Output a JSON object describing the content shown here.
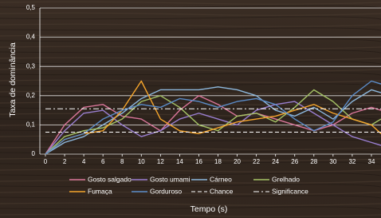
{
  "chart_data": {
    "type": "line",
    "x_label": "Tempo (s)",
    "y_label": "Taxa de dominância",
    "x": [
      0,
      2,
      4,
      6,
      8,
      10,
      12,
      14,
      16,
      18,
      20,
      22,
      24,
      26,
      28,
      30,
      32,
      34,
      35
    ],
    "xlim": [
      0,
      35
    ],
    "xticks": [
      0,
      2,
      4,
      6,
      8,
      10,
      12,
      14,
      16,
      18,
      20,
      22,
      24,
      26,
      28,
      30,
      32,
      34
    ],
    "ylim": [
      0,
      0.5
    ],
    "yticks": [
      0,
      {
        "value": 0.1,
        "label": "0,1"
      },
      {
        "value": 0.2,
        "label": "0,2"
      },
      {
        "value": 0.3,
        "label": "0,3"
      },
      {
        "value": 0.4,
        "label": "0,4"
      },
      {
        "value": 0.5,
        "label": "0,5"
      }
    ],
    "grid": true,
    "legend": "bottom",
    "series": [
      {
        "name": "Gosto salgado",
        "color": "#d9769a",
        "dash": "solid",
        "values": [
          0,
          0.1,
          0.16,
          0.17,
          0.13,
          0.12,
          0.08,
          0.15,
          0.2,
          0.17,
          0.13,
          0.14,
          0.12,
          0.1,
          0.08,
          0.1,
          0.14,
          0.16,
          0.15
        ]
      },
      {
        "name": "Gosto umami",
        "color": "#9a7fd1",
        "dash": "solid",
        "values": [
          0,
          0.08,
          0.14,
          0.15,
          0.1,
          0.06,
          0.08,
          0.12,
          0.14,
          0.12,
          0.1,
          0.15,
          0.17,
          0.18,
          0.14,
          0.1,
          0.06,
          0.04,
          0.03
        ]
      },
      {
        "name": "Cárneo",
        "color": "#8db8dd",
        "dash": "solid",
        "values": [
          0,
          0.04,
          0.06,
          0.1,
          0.14,
          0.19,
          0.22,
          0.22,
          0.22,
          0.23,
          0.22,
          0.2,
          0.15,
          0.13,
          0.16,
          0.12,
          0.18,
          0.22,
          0.21
        ]
      },
      {
        "name": "Grelhado",
        "color": "#a6c466",
        "dash": "solid",
        "values": [
          0,
          0.06,
          0.08,
          0.09,
          0.12,
          0.18,
          0.2,
          0.16,
          0.1,
          0.08,
          0.13,
          0.14,
          0.11,
          0.16,
          0.22,
          0.18,
          0.12,
          0.1,
          0.12
        ]
      },
      {
        "name": "Fumaça",
        "color": "#f5a52c",
        "dash": "solid",
        "values": [
          0,
          0.05,
          0.07,
          0.08,
          0.15,
          0.25,
          0.12,
          0.08,
          0.07,
          0.09,
          0.11,
          0.12,
          0.13,
          0.15,
          0.17,
          0.14,
          0.12,
          0.1,
          0.07
        ]
      },
      {
        "name": "Gorduroso",
        "color": "#5b8cc8",
        "dash": "solid",
        "values": [
          0,
          0.05,
          0.07,
          0.12,
          0.15,
          0.17,
          0.16,
          0.19,
          0.18,
          0.16,
          0.18,
          0.19,
          0.17,
          0.12,
          0.08,
          0.11,
          0.2,
          0.25,
          0.24
        ]
      },
      {
        "name": "Chance",
        "color": "#ffffff",
        "dash": "dashed",
        "values": [
          0.075,
          0.075,
          0.075,
          0.075,
          0.075,
          0.075,
          0.075,
          0.075,
          0.075,
          0.075,
          0.075,
          0.075,
          0.075,
          0.075,
          0.075,
          0.075,
          0.075,
          0.075,
          0.075
        ]
      },
      {
        "name": "Significance",
        "color": "#ffffff",
        "dash": "dashdot",
        "values": [
          0.155,
          0.155,
          0.155,
          0.155,
          0.155,
          0.155,
          0.155,
          0.155,
          0.155,
          0.155,
          0.155,
          0.155,
          0.155,
          0.155,
          0.155,
          0.155,
          0.155,
          0.155,
          0.155
        ]
      }
    ]
  }
}
